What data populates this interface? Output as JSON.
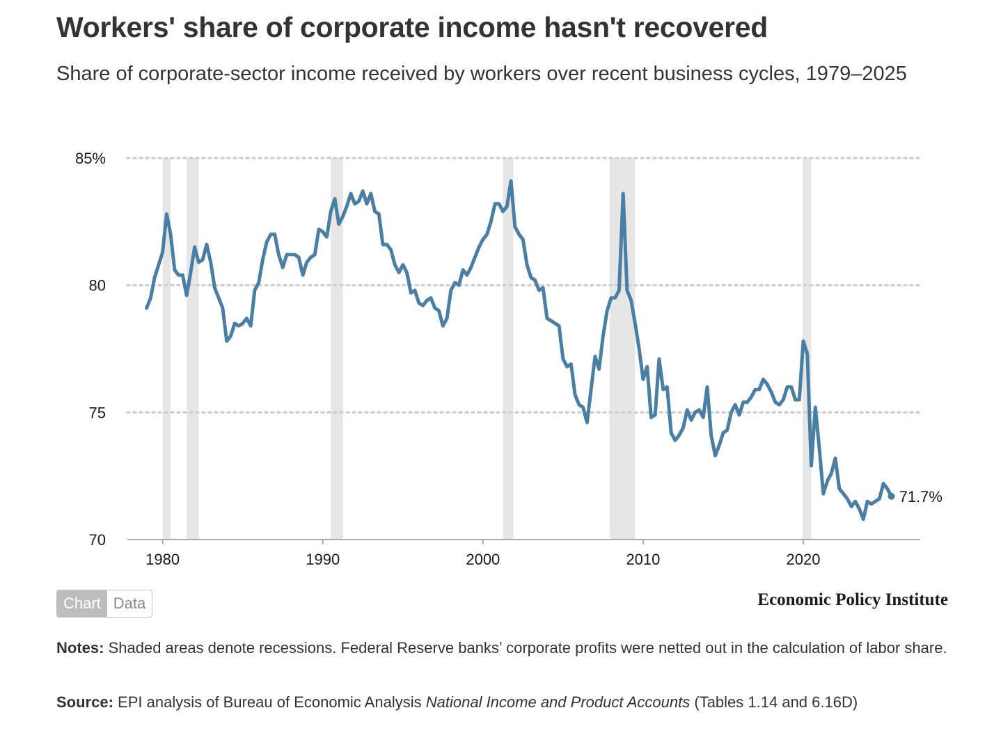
{
  "header": {
    "title": "Workers' share of corporate income hasn't recovered",
    "subtitle": "Share of corporate-sector income received by workers over recent business cycles, 1979–2025"
  },
  "toggle": {
    "chart_label": "Chart",
    "data_label": "Data"
  },
  "brand": "Economic Policy Institute",
  "footer": {
    "notes_label": "Notes:",
    "notes_text": "Shaded areas denote recessions. Federal Reserve banks’ corporate profits were netted out in the calculation of labor share.",
    "source_label": "Source:",
    "source_pre": "EPI analysis of Bureau of Economic Analysis",
    "source_italic": "National Income and Product Accounts",
    "source_post": "(Tables 1.14 and 6.16D)"
  },
  "colors": {
    "line": "#4a7fa5",
    "recession": "#e6e6e6",
    "grid": "#d0d0d0",
    "axis": "#aaaaaa",
    "text": "#333333"
  },
  "chart_data": {
    "type": "line",
    "title": "Workers' share of corporate income hasn't recovered",
    "xlabel": "",
    "ylabel": "",
    "ylim": [
      70,
      85
    ],
    "xlim": [
      1977.8,
      2027.3
    ],
    "y_ticks": [
      {
        "value": 70,
        "label": "70"
      },
      {
        "value": 75,
        "label": "75"
      },
      {
        "value": 80,
        "label": "80"
      },
      {
        "value": 85,
        "label": "85%"
      }
    ],
    "x_ticks": [
      {
        "value": 1980,
        "label": "1980"
      },
      {
        "value": 1990,
        "label": "1990"
      },
      {
        "value": 2000,
        "label": "2000"
      },
      {
        "value": 2010,
        "label": "2010"
      },
      {
        "value": 2020,
        "label": "2020"
      }
    ],
    "grid": true,
    "recessions": [
      [
        1980.0,
        1980.5
      ],
      [
        1981.5,
        1982.25
      ],
      [
        1990.5,
        1991.25
      ],
      [
        2001.25,
        2001.9
      ],
      [
        2007.9,
        2009.5
      ],
      [
        2020.0,
        2020.5
      ]
    ],
    "end_label": "71.7%",
    "series": [
      {
        "name": "Labor share",
        "points": [
          [
            1979.0,
            79.1
          ],
          [
            1979.25,
            79.5
          ],
          [
            1979.5,
            80.3
          ],
          [
            1979.75,
            80.8
          ],
          [
            1980.0,
            81.3
          ],
          [
            1980.25,
            82.8
          ],
          [
            1980.5,
            82.0
          ],
          [
            1980.75,
            80.6
          ],
          [
            1981.0,
            80.4
          ],
          [
            1981.25,
            80.4
          ],
          [
            1981.5,
            79.6
          ],
          [
            1981.75,
            80.5
          ],
          [
            1982.0,
            81.5
          ],
          [
            1982.25,
            80.9
          ],
          [
            1982.5,
            81.0
          ],
          [
            1982.75,
            81.6
          ],
          [
            1983.0,
            80.9
          ],
          [
            1983.25,
            79.9
          ],
          [
            1983.5,
            79.5
          ],
          [
            1983.75,
            79.1
          ],
          [
            1984.0,
            77.8
          ],
          [
            1984.25,
            78.0
          ],
          [
            1984.5,
            78.5
          ],
          [
            1984.75,
            78.4
          ],
          [
            1985.0,
            78.5
          ],
          [
            1985.25,
            78.7
          ],
          [
            1985.5,
            78.4
          ],
          [
            1985.75,
            79.8
          ],
          [
            1986.0,
            80.1
          ],
          [
            1986.25,
            81.0
          ],
          [
            1986.5,
            81.7
          ],
          [
            1986.75,
            82.0
          ],
          [
            1987.0,
            82.0
          ],
          [
            1987.25,
            81.2
          ],
          [
            1987.5,
            80.7
          ],
          [
            1987.75,
            81.2
          ],
          [
            1988.0,
            81.2
          ],
          [
            1988.25,
            81.2
          ],
          [
            1988.5,
            81.1
          ],
          [
            1988.75,
            80.4
          ],
          [
            1989.0,
            80.9
          ],
          [
            1989.25,
            81.1
          ],
          [
            1989.5,
            81.2
          ],
          [
            1989.75,
            82.2
          ],
          [
            1990.0,
            82.1
          ],
          [
            1990.25,
            81.9
          ],
          [
            1990.5,
            82.9
          ],
          [
            1990.75,
            83.4
          ],
          [
            1991.0,
            82.4
          ],
          [
            1991.25,
            82.7
          ],
          [
            1991.5,
            83.1
          ],
          [
            1991.75,
            83.6
          ],
          [
            1992.0,
            83.2
          ],
          [
            1992.25,
            83.3
          ],
          [
            1992.5,
            83.7
          ],
          [
            1992.75,
            83.2
          ],
          [
            1993.0,
            83.6
          ],
          [
            1993.25,
            82.9
          ],
          [
            1993.5,
            82.8
          ],
          [
            1993.75,
            81.6
          ],
          [
            1994.0,
            81.6
          ],
          [
            1994.25,
            81.4
          ],
          [
            1994.5,
            80.8
          ],
          [
            1994.75,
            80.5
          ],
          [
            1995.0,
            80.8
          ],
          [
            1995.25,
            80.5
          ],
          [
            1995.5,
            79.7
          ],
          [
            1995.75,
            79.8
          ],
          [
            1996.0,
            79.3
          ],
          [
            1996.25,
            79.2
          ],
          [
            1996.5,
            79.4
          ],
          [
            1996.75,
            79.5
          ],
          [
            1997.0,
            79.1
          ],
          [
            1997.25,
            79.0
          ],
          [
            1997.5,
            78.4
          ],
          [
            1997.75,
            78.7
          ],
          [
            1998.0,
            79.8
          ],
          [
            1998.25,
            80.1
          ],
          [
            1998.5,
            80.0
          ],
          [
            1998.75,
            80.6
          ],
          [
            1999.0,
            80.4
          ],
          [
            1999.25,
            80.7
          ],
          [
            1999.5,
            81.1
          ],
          [
            1999.75,
            81.5
          ],
          [
            2000.0,
            81.8
          ],
          [
            2000.25,
            82.0
          ],
          [
            2000.5,
            82.5
          ],
          [
            2000.75,
            83.2
          ],
          [
            2001.0,
            83.2
          ],
          [
            2001.25,
            82.9
          ],
          [
            2001.5,
            83.1
          ],
          [
            2001.75,
            84.1
          ],
          [
            2002.0,
            82.3
          ],
          [
            2002.25,
            82.0
          ],
          [
            2002.5,
            81.8
          ],
          [
            2002.75,
            80.8
          ],
          [
            2003.0,
            80.3
          ],
          [
            2003.25,
            80.2
          ],
          [
            2003.5,
            79.8
          ],
          [
            2003.75,
            79.9
          ],
          [
            2004.0,
            78.7
          ],
          [
            2004.25,
            78.6
          ],
          [
            2004.5,
            78.5
          ],
          [
            2004.75,
            78.4
          ],
          [
            2005.0,
            77.1
          ],
          [
            2005.25,
            76.8
          ],
          [
            2005.5,
            76.9
          ],
          [
            2005.75,
            75.7
          ],
          [
            2006.0,
            75.3
          ],
          [
            2006.25,
            75.2
          ],
          [
            2006.5,
            74.6
          ],
          [
            2006.75,
            75.9
          ],
          [
            2007.0,
            77.2
          ],
          [
            2007.25,
            76.7
          ],
          [
            2007.5,
            78.0
          ],
          [
            2007.75,
            79.0
          ],
          [
            2008.0,
            79.5
          ],
          [
            2008.25,
            79.5
          ],
          [
            2008.5,
            79.8
          ],
          [
            2008.75,
            83.6
          ],
          [
            2009.0,
            79.8
          ],
          [
            2009.25,
            79.4
          ],
          [
            2009.5,
            78.5
          ],
          [
            2009.75,
            77.5
          ],
          [
            2010.0,
            76.3
          ],
          [
            2010.25,
            76.8
          ],
          [
            2010.5,
            74.8
          ],
          [
            2010.75,
            74.9
          ],
          [
            2011.0,
            77.1
          ],
          [
            2011.25,
            75.9
          ],
          [
            2011.5,
            76.0
          ],
          [
            2011.75,
            74.2
          ],
          [
            2012.0,
            73.9
          ],
          [
            2012.25,
            74.1
          ],
          [
            2012.5,
            74.4
          ],
          [
            2012.75,
            75.1
          ],
          [
            2013.0,
            74.7
          ],
          [
            2013.25,
            75.0
          ],
          [
            2013.5,
            75.1
          ],
          [
            2013.75,
            74.8
          ],
          [
            2014.0,
            76.0
          ],
          [
            2014.25,
            74.1
          ],
          [
            2014.5,
            73.3
          ],
          [
            2014.75,
            73.7
          ],
          [
            2015.0,
            74.2
          ],
          [
            2015.25,
            74.3
          ],
          [
            2015.5,
            75.0
          ],
          [
            2015.75,
            75.3
          ],
          [
            2016.0,
            74.9
          ],
          [
            2016.25,
            75.4
          ],
          [
            2016.5,
            75.4
          ],
          [
            2016.75,
            75.6
          ],
          [
            2017.0,
            75.9
          ],
          [
            2017.25,
            75.9
          ],
          [
            2017.5,
            76.3
          ],
          [
            2017.75,
            76.1
          ],
          [
            2018.0,
            75.8
          ],
          [
            2018.25,
            75.4
          ],
          [
            2018.5,
            75.3
          ],
          [
            2018.75,
            75.5
          ],
          [
            2019.0,
            76.0
          ],
          [
            2019.25,
            76.0
          ],
          [
            2019.5,
            75.5
          ],
          [
            2019.75,
            75.5
          ],
          [
            2020.0,
            77.8
          ],
          [
            2020.25,
            77.3
          ],
          [
            2020.5,
            72.9
          ],
          [
            2020.75,
            75.2
          ],
          [
            2021.0,
            73.6
          ],
          [
            2021.25,
            71.8
          ],
          [
            2021.5,
            72.3
          ],
          [
            2021.75,
            72.6
          ],
          [
            2022.0,
            73.2
          ],
          [
            2022.25,
            72.0
          ],
          [
            2022.5,
            71.8
          ],
          [
            2022.75,
            71.6
          ],
          [
            2023.0,
            71.3
          ],
          [
            2023.25,
            71.5
          ],
          [
            2023.5,
            71.2
          ],
          [
            2023.75,
            70.8
          ],
          [
            2024.0,
            71.5
          ],
          [
            2024.25,
            71.4
          ],
          [
            2024.5,
            71.5
          ],
          [
            2024.75,
            71.6
          ],
          [
            2025.0,
            72.2
          ],
          [
            2025.25,
            72.0
          ],
          [
            2025.5,
            71.7
          ]
        ]
      }
    ]
  }
}
